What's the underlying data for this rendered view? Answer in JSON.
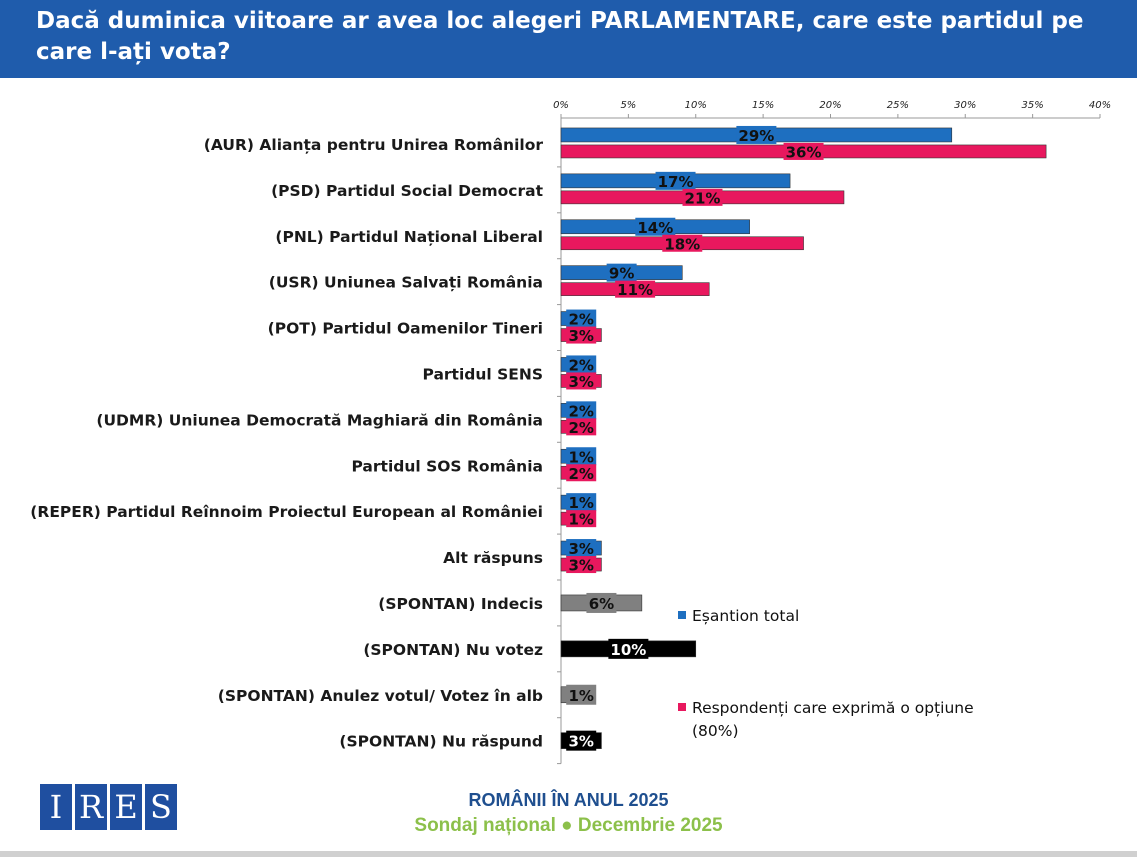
{
  "header": {
    "title": "Dacă duminica viitoare ar avea loc alegeri PARLAMENTARE, care este partidul pe care l-ați vota?"
  },
  "chart_data": {
    "type": "bar",
    "orientation": "horizontal",
    "title": "Dacă duminica viitoare ar avea loc alegeri PARLAMENTARE, care este partidul pe care l-ați vota?",
    "xlim": [
      0,
      40
    ],
    "xticks": [
      "0%",
      "5%",
      "10%",
      "15%",
      "20%",
      "25%",
      "30%",
      "35%",
      "40%"
    ],
    "xtick_values": [
      0,
      5,
      10,
      15,
      20,
      25,
      30,
      35,
      40
    ],
    "grid": false,
    "legend_placement": "right",
    "categories": [
      "(AUR) Alianța pentru Unirea Românilor",
      "(PSD) Partidul Social Democrat",
      "(PNL) Partidul Național Liberal",
      "(USR) Uniunea Salvați România",
      "(POT) Partidul Oamenilor Tineri",
      "Partidul SENS",
      "(UDMR) Uniunea Democrată Maghiară din România",
      "Partidul SOS România",
      "(REPER) Partidul Reînnoim Proiectul European al României",
      "Alt răspuns",
      "(SPONTAN) Indecis",
      "(SPONTAN) Nu votez",
      "(SPONTAN) Anulez votul/ Votez în alb",
      "(SPONTAN) Nu răspund"
    ],
    "series": [
      {
        "name": "Eșantion total",
        "color": "#1e6fc0",
        "values": [
          29,
          17,
          14,
          9,
          2,
          2,
          2,
          1,
          1,
          3,
          null,
          null,
          null,
          null
        ],
        "labels": [
          "29%",
          "17%",
          "14%",
          "9%",
          "2%",
          "2%",
          "2%",
          "1%",
          "1%",
          "3%",
          null,
          null,
          null,
          null
        ]
      },
      {
        "name": "Respondenți care exprimă o opțiune (80%)",
        "color": "#e8185e",
        "values": [
          36,
          21,
          18,
          11,
          3,
          3,
          2,
          2,
          1,
          3,
          null,
          null,
          null,
          null
        ],
        "labels": [
          "36%",
          "21%",
          "18%",
          "11%",
          "3%",
          "3%",
          "2%",
          "2%",
          "1%",
          "3%",
          null,
          null,
          null,
          null
        ]
      },
      {
        "name": "",
        "color_by_point": [
          "#808080",
          "#000000",
          "#808080",
          "#000000"
        ],
        "values": [
          null,
          null,
          null,
          null,
          null,
          null,
          null,
          null,
          null,
          null,
          6,
          10,
          1,
          3
        ],
        "labels": [
          null,
          null,
          null,
          null,
          null,
          null,
          null,
          null,
          null,
          null,
          "6%",
          "10%",
          "1%",
          "3%"
        ]
      }
    ]
  },
  "legend": [
    {
      "label": "Eșantion total",
      "color": "#1e6fc0"
    },
    {
      "label": "Respondenți care exprimă o opțiune",
      "label2": "(80%)",
      "color": "#e8185e"
    }
  ],
  "footer": {
    "logo_text": "IRES",
    "line1": "ROMÂNII ÎN ANUL 2025",
    "line2": "Sondaj național ● Decembrie 2025"
  }
}
